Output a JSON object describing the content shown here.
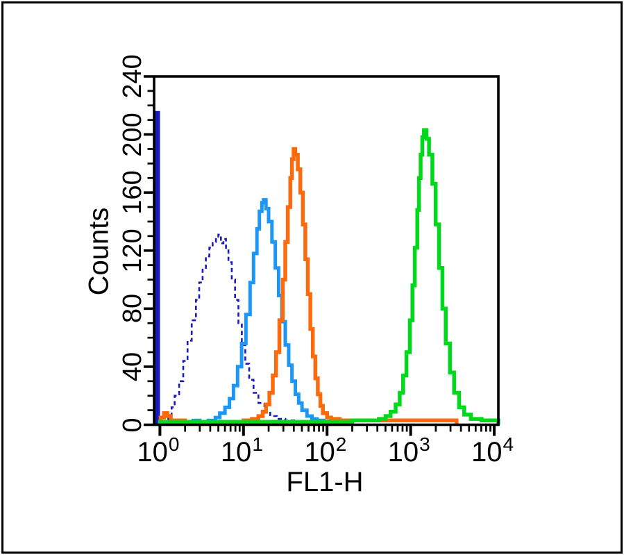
{
  "figure": {
    "background_color": "#ffffff",
    "frame_color": "#000000"
  },
  "chart_data": {
    "type": "line",
    "subtype": "flow-cytometry-step-histogram",
    "title": "",
    "xlabel": "FL1-H",
    "ylabel": "Counts",
    "x_scale": "log10",
    "xlim": [
      1,
      10000
    ],
    "ylim": [
      0,
      240
    ],
    "x_tick_base": "10",
    "x_tick_exponents": [
      0,
      1,
      2,
      3,
      4
    ],
    "y_ticks": [
      0,
      40,
      80,
      120,
      160,
      200,
      240
    ],
    "y_minor_step": 10,
    "grid": false,
    "legend": "none",
    "axis_color": "#000000",
    "series": [
      {
        "name": "dark-blue-axis-spike",
        "color": "#1a1ab9",
        "style": "solid",
        "width": 5,
        "at_axis": true,
        "points": [
          [
            1.0,
            215
          ],
          [
            1.06,
            215
          ]
        ]
      },
      {
        "name": "dark-blue-dashed-curve",
        "color": "#1a1ab9",
        "style": "dashed",
        "width": 2.6,
        "points": [
          [
            1.15,
            2
          ],
          [
            1.26,
            6
          ],
          [
            1.38,
            12
          ],
          [
            1.5,
            20
          ],
          [
            1.7,
            30
          ],
          [
            1.9,
            44
          ],
          [
            2.14,
            58
          ],
          [
            2.4,
            72
          ],
          [
            2.7,
            86
          ],
          [
            2.95,
            98
          ],
          [
            3.24,
            108
          ],
          [
            3.55,
            116
          ],
          [
            3.9,
            122
          ],
          [
            4.27,
            126
          ],
          [
            4.68,
            129
          ],
          [
            5.0,
            131
          ],
          [
            5.37,
            125
          ],
          [
            5.75,
            128
          ],
          [
            6.17,
            121
          ],
          [
            6.6,
            112
          ],
          [
            7.24,
            100
          ],
          [
            7.94,
            86
          ],
          [
            8.7,
            70
          ],
          [
            9.55,
            55
          ],
          [
            10.5,
            42
          ],
          [
            11.7,
            31
          ],
          [
            13.2,
            22
          ],
          [
            15.1,
            15
          ],
          [
            17.8,
            9
          ],
          [
            20.9,
            6
          ],
          [
            25.1,
            4
          ],
          [
            31.6,
            3
          ],
          [
            41.7,
            2
          ],
          [
            56.2,
            2
          ],
          [
            79.4,
            1
          ]
        ]
      },
      {
        "name": "light-blue-curve",
        "color": "#1e96f5",
        "style": "solid",
        "width": 5,
        "points": [
          [
            2.0,
            2
          ],
          [
            2.5,
            3
          ],
          [
            3.0,
            2
          ],
          [
            3.8,
            3
          ],
          [
            4.6,
            5
          ],
          [
            5.2,
            8
          ],
          [
            6.0,
            12
          ],
          [
            6.8,
            18
          ],
          [
            7.6,
            27
          ],
          [
            8.5,
            40
          ],
          [
            9.5,
            56
          ],
          [
            10.7,
            76
          ],
          [
            12.0,
            98
          ],
          [
            13.2,
            118
          ],
          [
            14.5,
            135
          ],
          [
            15.5,
            147
          ],
          [
            16.6,
            153
          ],
          [
            17.4,
            155
          ],
          [
            18.6,
            149
          ],
          [
            20.0,
            140
          ],
          [
            21.9,
            126
          ],
          [
            24.0,
            108
          ],
          [
            26.3,
            89
          ],
          [
            28.8,
            71
          ],
          [
            31.6,
            55
          ],
          [
            34.7,
            41
          ],
          [
            38.0,
            30
          ],
          [
            41.7,
            21
          ],
          [
            45.7,
            15
          ],
          [
            50.1,
            10
          ],
          [
            57.5,
            6
          ],
          [
            66.0,
            4
          ],
          [
            75.9,
            3
          ],
          [
            91.2,
            2
          ],
          [
            112,
            2
          ],
          [
            158,
            2
          ]
        ]
      },
      {
        "name": "orange-curve",
        "color": "#fb6a0d",
        "style": "solid",
        "width": 5.5,
        "points": [
          [
            1.02,
            5
          ],
          [
            1.12,
            8
          ],
          [
            1.23,
            6
          ],
          [
            1.35,
            3
          ],
          [
            2.0,
            2
          ],
          [
            5.0,
            2
          ],
          [
            10,
            3
          ],
          [
            12.6,
            4
          ],
          [
            15.1,
            6
          ],
          [
            17.0,
            9
          ],
          [
            18.6,
            14
          ],
          [
            20.4,
            22
          ],
          [
            22.4,
            34
          ],
          [
            24.5,
            50
          ],
          [
            26.9,
            72
          ],
          [
            29.5,
            100
          ],
          [
            31.6,
            126
          ],
          [
            33.9,
            150
          ],
          [
            36.3,
            170
          ],
          [
            38.0,
            183
          ],
          [
            39.8,
            190
          ],
          [
            41.7,
            186
          ],
          [
            44.7,
            176
          ],
          [
            47.9,
            160
          ],
          [
            51.3,
            138
          ],
          [
            55.0,
            114
          ],
          [
            58.9,
            90
          ],
          [
            63.1,
            66
          ],
          [
            67.6,
            47
          ],
          [
            72.4,
            32
          ],
          [
            77.6,
            21
          ],
          [
            83.2,
            13
          ],
          [
            89.1,
            8
          ],
          [
            100,
            5
          ],
          [
            112,
            4
          ],
          [
            141,
            3
          ],
          [
            200,
            3
          ],
          [
            316,
            3
          ],
          [
            631,
            3
          ],
          [
            1259,
            3
          ],
          [
            2512,
            3
          ],
          [
            3548,
            2
          ]
        ]
      },
      {
        "name": "green-curve",
        "color": "#00d81c",
        "style": "solid",
        "width": 5.5,
        "points": [
          [
            1.0,
            2
          ],
          [
            3.2,
            2
          ],
          [
            10,
            2
          ],
          [
            32,
            2
          ],
          [
            100,
            2
          ],
          [
            200,
            3
          ],
          [
            316,
            3
          ],
          [
            417,
            4
          ],
          [
            501,
            6
          ],
          [
            575,
            9
          ],
          [
            661,
            14
          ],
          [
            741,
            22
          ],
          [
            813,
            34
          ],
          [
            891,
            50
          ],
          [
            977,
            72
          ],
          [
            1050,
            96
          ],
          [
            1122,
            122
          ],
          [
            1202,
            148
          ],
          [
            1259,
            170
          ],
          [
            1318,
            186
          ],
          [
            1380,
            198
          ],
          [
            1445,
            203
          ],
          [
            1549,
            197
          ],
          [
            1660,
            186
          ],
          [
            1820,
            166
          ],
          [
            1995,
            138
          ],
          [
            2188,
            108
          ],
          [
            2399,
            80
          ],
          [
            2630,
            56
          ],
          [
            2951,
            36
          ],
          [
            3311,
            22
          ],
          [
            3802,
            12
          ],
          [
            4365,
            7
          ],
          [
            5248,
            4
          ],
          [
            7079,
            3
          ],
          [
            10000,
            3
          ],
          [
            11200,
            2
          ]
        ]
      }
    ]
  }
}
